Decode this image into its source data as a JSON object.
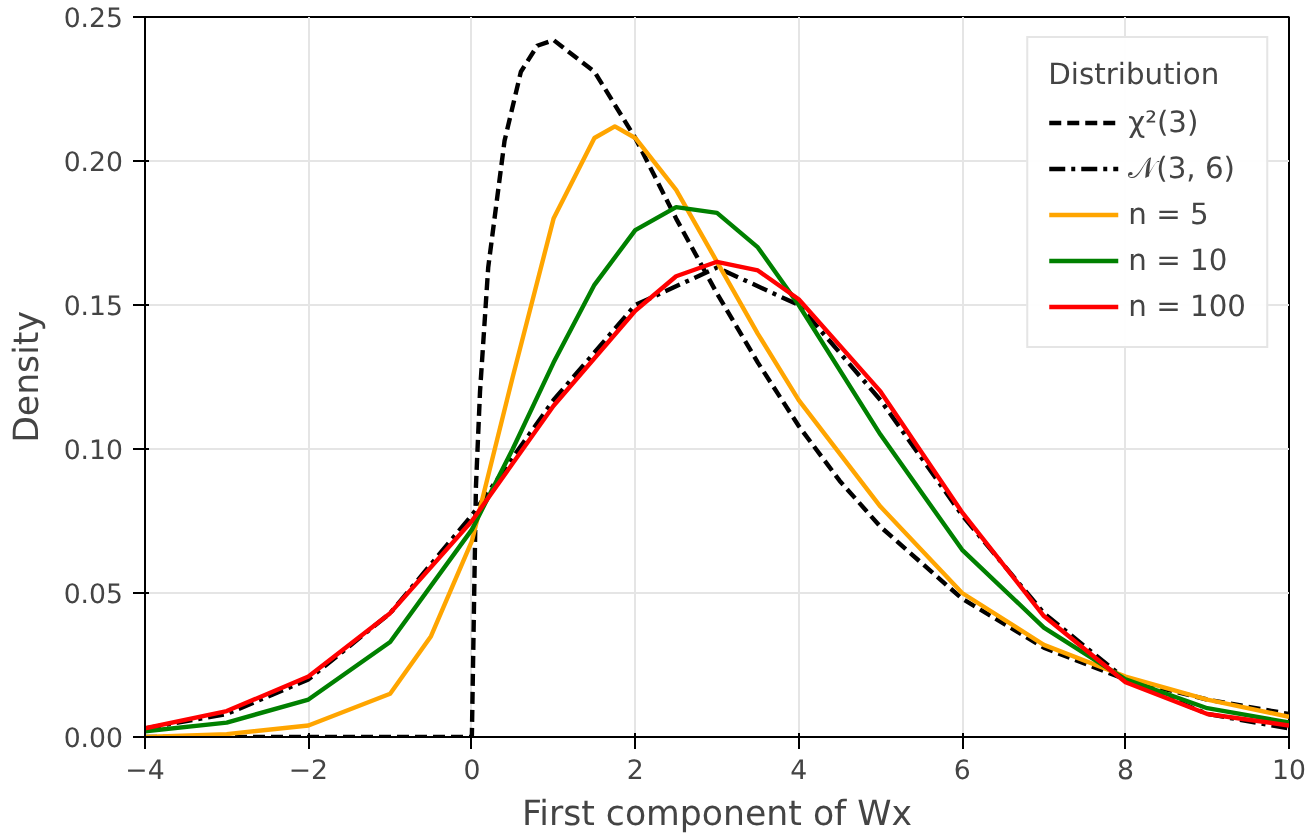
{
  "chart_data": {
    "type": "line",
    "xlabel": "First component of Wx",
    "ylabel": "Density",
    "legend_title": "Distribution",
    "legend": "top right",
    "grid": true,
    "xlim": [
      -4,
      10
    ],
    "xticks": [
      -4,
      -2,
      0,
      2,
      4,
      6,
      8,
      10
    ],
    "ylim": [
      0,
      0.25
    ],
    "yticks": [
      {
        "value": 0,
        "label": "0.00"
      },
      {
        "value": 0.05,
        "label": "0.05"
      },
      {
        "value": 0.1,
        "label": "0.10"
      },
      {
        "value": 0.15,
        "label": "0.15"
      },
      {
        "value": 0.2,
        "label": "0.20"
      },
      {
        "value": 0.25,
        "label": "0.25"
      }
    ],
    "series": [
      {
        "name": "χ²(3)",
        "color": "#000000",
        "line_style": "dashed",
        "x": [
          -4,
          -2,
          0,
          0.05,
          0.1,
          0.2,
          0.4,
          0.6,
          0.8,
          1,
          1.5,
          2,
          2.5,
          3,
          3.5,
          4,
          4.5,
          5,
          6,
          7,
          8,
          9,
          10
        ],
        "values": [
          0,
          0,
          0,
          0.087,
          0.12,
          0.163,
          0.207,
          0.231,
          0.24,
          0.242,
          0.231,
          0.208,
          0.18,
          0.154,
          0.13,
          0.108,
          0.089,
          0.073,
          0.048,
          0.031,
          0.02,
          0.013,
          0.008
        ]
      },
      {
        "name": "𝒩(3, 6)",
        "color": "#000000",
        "line_style": "dashdot",
        "x": [
          -4,
          -3,
          -2,
          -1,
          0,
          1,
          2,
          3,
          4,
          5,
          6,
          7,
          8,
          9,
          10
        ],
        "values": [
          0.003,
          0.008,
          0.02,
          0.043,
          0.077,
          0.117,
          0.15,
          0.163,
          0.15,
          0.117,
          0.077,
          0.043,
          0.02,
          0.008,
          0.003
        ]
      },
      {
        "name": "n = 5",
        "color": "#ffa500",
        "line_style": "solid",
        "x": [
          -4,
          -3,
          -2,
          -1,
          -0.5,
          0,
          0.5,
          1,
          1.5,
          1.75,
          2,
          2.5,
          3,
          3.5,
          4,
          5,
          6,
          7,
          8,
          9,
          10
        ],
        "values": [
          0,
          0.001,
          0.004,
          0.015,
          0.035,
          0.068,
          0.125,
          0.18,
          0.208,
          0.212,
          0.208,
          0.19,
          0.165,
          0.14,
          0.117,
          0.08,
          0.05,
          0.032,
          0.021,
          0.013,
          0.007
        ]
      },
      {
        "name": "n = 10",
        "color": "#008000",
        "line_style": "solid",
        "x": [
          -4,
          -3,
          -2,
          -1,
          0,
          0.5,
          1,
          1.5,
          2,
          2.5,
          3,
          3.5,
          4,
          5,
          6,
          7,
          8,
          9,
          10
        ],
        "values": [
          0.002,
          0.005,
          0.013,
          0.033,
          0.072,
          0.1,
          0.13,
          0.157,
          0.176,
          0.184,
          0.182,
          0.17,
          0.15,
          0.105,
          0.065,
          0.038,
          0.02,
          0.01,
          0.005
        ]
      },
      {
        "name": "n = 100",
        "color": "#ff0000",
        "line_style": "solid",
        "x": [
          -4,
          -3,
          -2,
          -1,
          0,
          1,
          2,
          2.5,
          3,
          3.5,
          4,
          5,
          6,
          7,
          8,
          9,
          10
        ],
        "values": [
          0.003,
          0.009,
          0.021,
          0.043,
          0.075,
          0.115,
          0.148,
          0.16,
          0.165,
          0.162,
          0.152,
          0.12,
          0.078,
          0.042,
          0.019,
          0.008,
          0.004
        ]
      }
    ]
  }
}
